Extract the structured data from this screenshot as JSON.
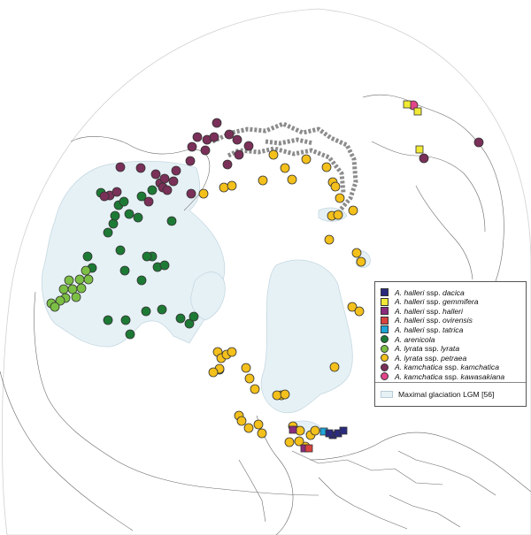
{
  "map": {
    "projection": "north-polar",
    "colors": {
      "ocean": "#ffffff",
      "land": "#ffffff",
      "border": "#6a6a6a",
      "glaciation": "#e6f1f6",
      "glaciation_edge": "#c5d8e1",
      "mountains": "#8c8c8c"
    }
  },
  "legend": {
    "items": [
      {
        "genus": "A.",
        "species": "halleri",
        "rank": "ssp.",
        "subspecies": "dacica",
        "symbol": "square",
        "color": "#2a2a7e"
      },
      {
        "genus": "A.",
        "species": "halleri",
        "rank": "ssp.",
        "subspecies": "gemmifera",
        "symbol": "square",
        "color": "#f1ea35"
      },
      {
        "genus": "A.",
        "species": "halleri",
        "rank": "ssp.",
        "subspecies": "halleri",
        "symbol": "square",
        "color": "#8a2c7d"
      },
      {
        "genus": "A.",
        "species": "halleri",
        "rank": "ssp.",
        "subspecies": "ovirensis",
        "symbol": "square",
        "color": "#d9433f"
      },
      {
        "genus": "A.",
        "species": "halleri",
        "rank": "ssp.",
        "subspecies": "tatrica",
        "symbol": "square",
        "color": "#1ea5d8"
      },
      {
        "genus": "A.",
        "species": "arenicola",
        "rank": "",
        "subspecies": "",
        "symbol": "circle",
        "color": "#1d7a35"
      },
      {
        "genus": "A.",
        "species": "lyrata",
        "rank": "ssp.",
        "subspecies": "lyrata",
        "symbol": "circle",
        "color": "#7cbf45"
      },
      {
        "genus": "A.",
        "species": "lyrata",
        "rank": "ssp.",
        "subspecies": "petraea",
        "symbol": "circle",
        "color": "#f4c01b"
      },
      {
        "genus": "A.",
        "species": "kamchatica",
        "rank": "ssp.",
        "subspecies": "kamchatica",
        "symbol": "circle",
        "color": "#7a3058"
      },
      {
        "genus": "A.",
        "species": "kamchatica",
        "rank": "ssp.",
        "subspecies": "kawasakiana",
        "symbol": "circle",
        "color": "#e2458a"
      }
    ],
    "area_label": "Maximal glaciation LGM [56]"
  },
  "sites": {
    "dacica": [
      [
        376,
        492
      ],
      [
        382,
        490
      ],
      [
        388,
        487
      ],
      [
        372,
        490
      ]
    ],
    "gemmifera": [
      [
        460,
        118
      ],
      [
        472,
        126
      ],
      [
        474,
        169
      ]
    ],
    "halleri": [
      [
        331,
        486
      ],
      [
        344,
        507
      ]
    ],
    "ovirensis": [
      [
        349,
        507
      ]
    ],
    "tatrica": [
      [
        366,
        488
      ]
    ],
    "arenicola": [
      [
        122,
        263
      ],
      [
        128,
        253
      ],
      [
        130,
        244
      ],
      [
        134,
        232
      ],
      [
        140,
        228
      ],
      [
        146,
        242
      ],
      [
        156,
        246
      ],
      [
        160,
        222
      ],
      [
        172,
        215
      ],
      [
        194,
        250
      ],
      [
        114,
        218
      ],
      [
        136,
        283
      ],
      [
        99,
        290
      ],
      [
        141,
        306
      ],
      [
        160,
        317
      ],
      [
        178,
        302
      ],
      [
        172,
        290
      ],
      [
        186,
        300
      ],
      [
        166,
        290
      ],
      [
        183,
        350
      ],
      [
        165,
        352
      ],
      [
        142,
        362
      ],
      [
        122,
        362
      ],
      [
        147,
        378
      ],
      [
        204,
        360
      ],
      [
        214,
        366
      ],
      [
        219,
        358
      ],
      [
        248,
        418
      ],
      [
        104,
        303
      ]
    ],
    "lyrata": [
      [
        58,
        343
      ],
      [
        72,
        327
      ],
      [
        78,
        317
      ],
      [
        82,
        327
      ],
      [
        90,
        316
      ],
      [
        97,
        306
      ],
      [
        86,
        336
      ],
      [
        74,
        337
      ],
      [
        92,
        326
      ],
      [
        100,
        316
      ],
      [
        68,
        340
      ],
      [
        62,
        347
      ]
    ],
    "petraea": [
      [
        230,
        219
      ],
      [
        253,
        212
      ],
      [
        262,
        210
      ],
      [
        297,
        204
      ],
      [
        309,
        175
      ],
      [
        322,
        190
      ],
      [
        330,
        203
      ],
      [
        346,
        180
      ],
      [
        369,
        189
      ],
      [
        376,
        206
      ],
      [
        379,
        211
      ],
      [
        384,
        224
      ],
      [
        375,
        244
      ],
      [
        382,
        243
      ],
      [
        399,
        238
      ],
      [
        372,
        271
      ],
      [
        403,
        286
      ],
      [
        408,
        296
      ],
      [
        398,
        347
      ],
      [
        406,
        352
      ],
      [
        378,
        415
      ],
      [
        246,
        398
      ],
      [
        250,
        405
      ],
      [
        256,
        401
      ],
      [
        262,
        398
      ],
      [
        248,
        417
      ],
      [
        241,
        421
      ],
      [
        278,
        416
      ],
      [
        282,
        428
      ],
      [
        288,
        440
      ],
      [
        318,
        447
      ],
      [
        313,
        447
      ],
      [
        322,
        446
      ],
      [
        270,
        470
      ],
      [
        273,
        476
      ],
      [
        281,
        484
      ],
      [
        292,
        480
      ],
      [
        296,
        490
      ],
      [
        331,
        482
      ],
      [
        339,
        487
      ],
      [
        351,
        492
      ],
      [
        345,
        505
      ],
      [
        338,
        499
      ],
      [
        327,
        500
      ],
      [
        356,
        487
      ]
    ],
    "kamchatica": [
      [
        245,
        139
      ],
      [
        223,
        155
      ],
      [
        234,
        158
      ],
      [
        242,
        155
      ],
      [
        136,
        189
      ],
      [
        159,
        190
      ],
      [
        176,
        197
      ],
      [
        199,
        193
      ],
      [
        215,
        182
      ],
      [
        217,
        166
      ],
      [
        232,
        170
      ],
      [
        259,
        152
      ],
      [
        270,
        175
      ],
      [
        268,
        158
      ],
      [
        281,
        165
      ],
      [
        257,
        186
      ],
      [
        124,
        221
      ],
      [
        118,
        222
      ],
      [
        132,
        217
      ],
      [
        181,
        207
      ],
      [
        186,
        202
      ],
      [
        184,
        212
      ],
      [
        216,
        219
      ],
      [
        196,
        205
      ],
      [
        168,
        228
      ],
      [
        189,
        215
      ],
      [
        479,
        179
      ],
      [
        541,
        161
      ]
    ],
    "kawasakiana": [
      [
        467,
        119
      ]
    ]
  }
}
